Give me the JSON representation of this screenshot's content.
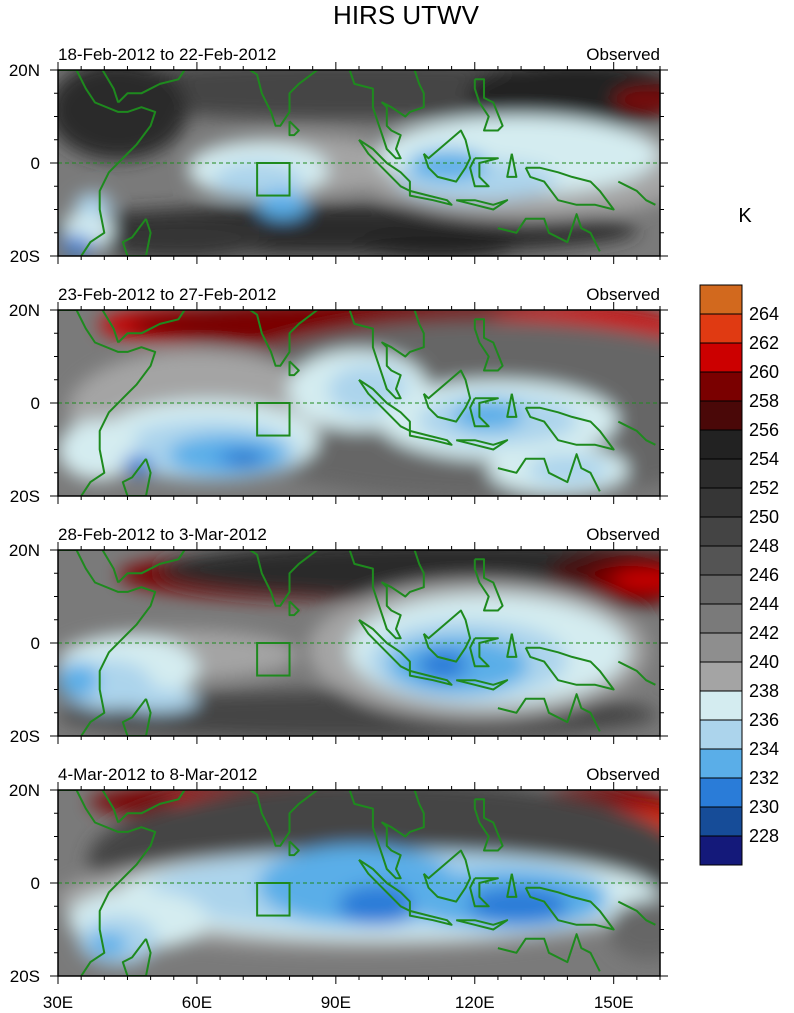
{
  "title": "HIRS UTWV",
  "unit": "K",
  "panels": [
    {
      "period": "18-Feb-2012 to 22-Feb-2012",
      "label": "Observed"
    },
    {
      "period": "23-Feb-2012 to 27-Feb-2012",
      "label": "Observed"
    },
    {
      "period": "28-Feb-2012 to 3-Mar-2012",
      "label": "Observed"
    },
    {
      "period": "4-Mar-2012 to 8-Mar-2012",
      "label": "Observed"
    }
  ],
  "lat_labels": [
    "20N",
    "0",
    "20S"
  ],
  "lon_labels": [
    "30E",
    "60E",
    "90E",
    "120E",
    "150E"
  ],
  "colorbar": {
    "labels": [
      "264",
      "262",
      "260",
      "258",
      "256",
      "254",
      "252",
      "250",
      "248",
      "246",
      "244",
      "242",
      "240",
      "238",
      "236",
      "234",
      "232",
      "230",
      "228"
    ],
    "colors": [
      "#d2691e",
      "#e03a12",
      "#cc0000",
      "#7a0000",
      "#4a0808",
      "#222222",
      "#2c2c2c",
      "#363636",
      "#444444",
      "#545454",
      "#666666",
      "#7a7a7a",
      "#8e8e8e",
      "#a4a4a4",
      "#d4ecf0",
      "#acd4ec",
      "#5aaee8",
      "#2a7cd8",
      "#164c98",
      "#14197a"
    ]
  },
  "coast_color": "#1e8a1e"
}
